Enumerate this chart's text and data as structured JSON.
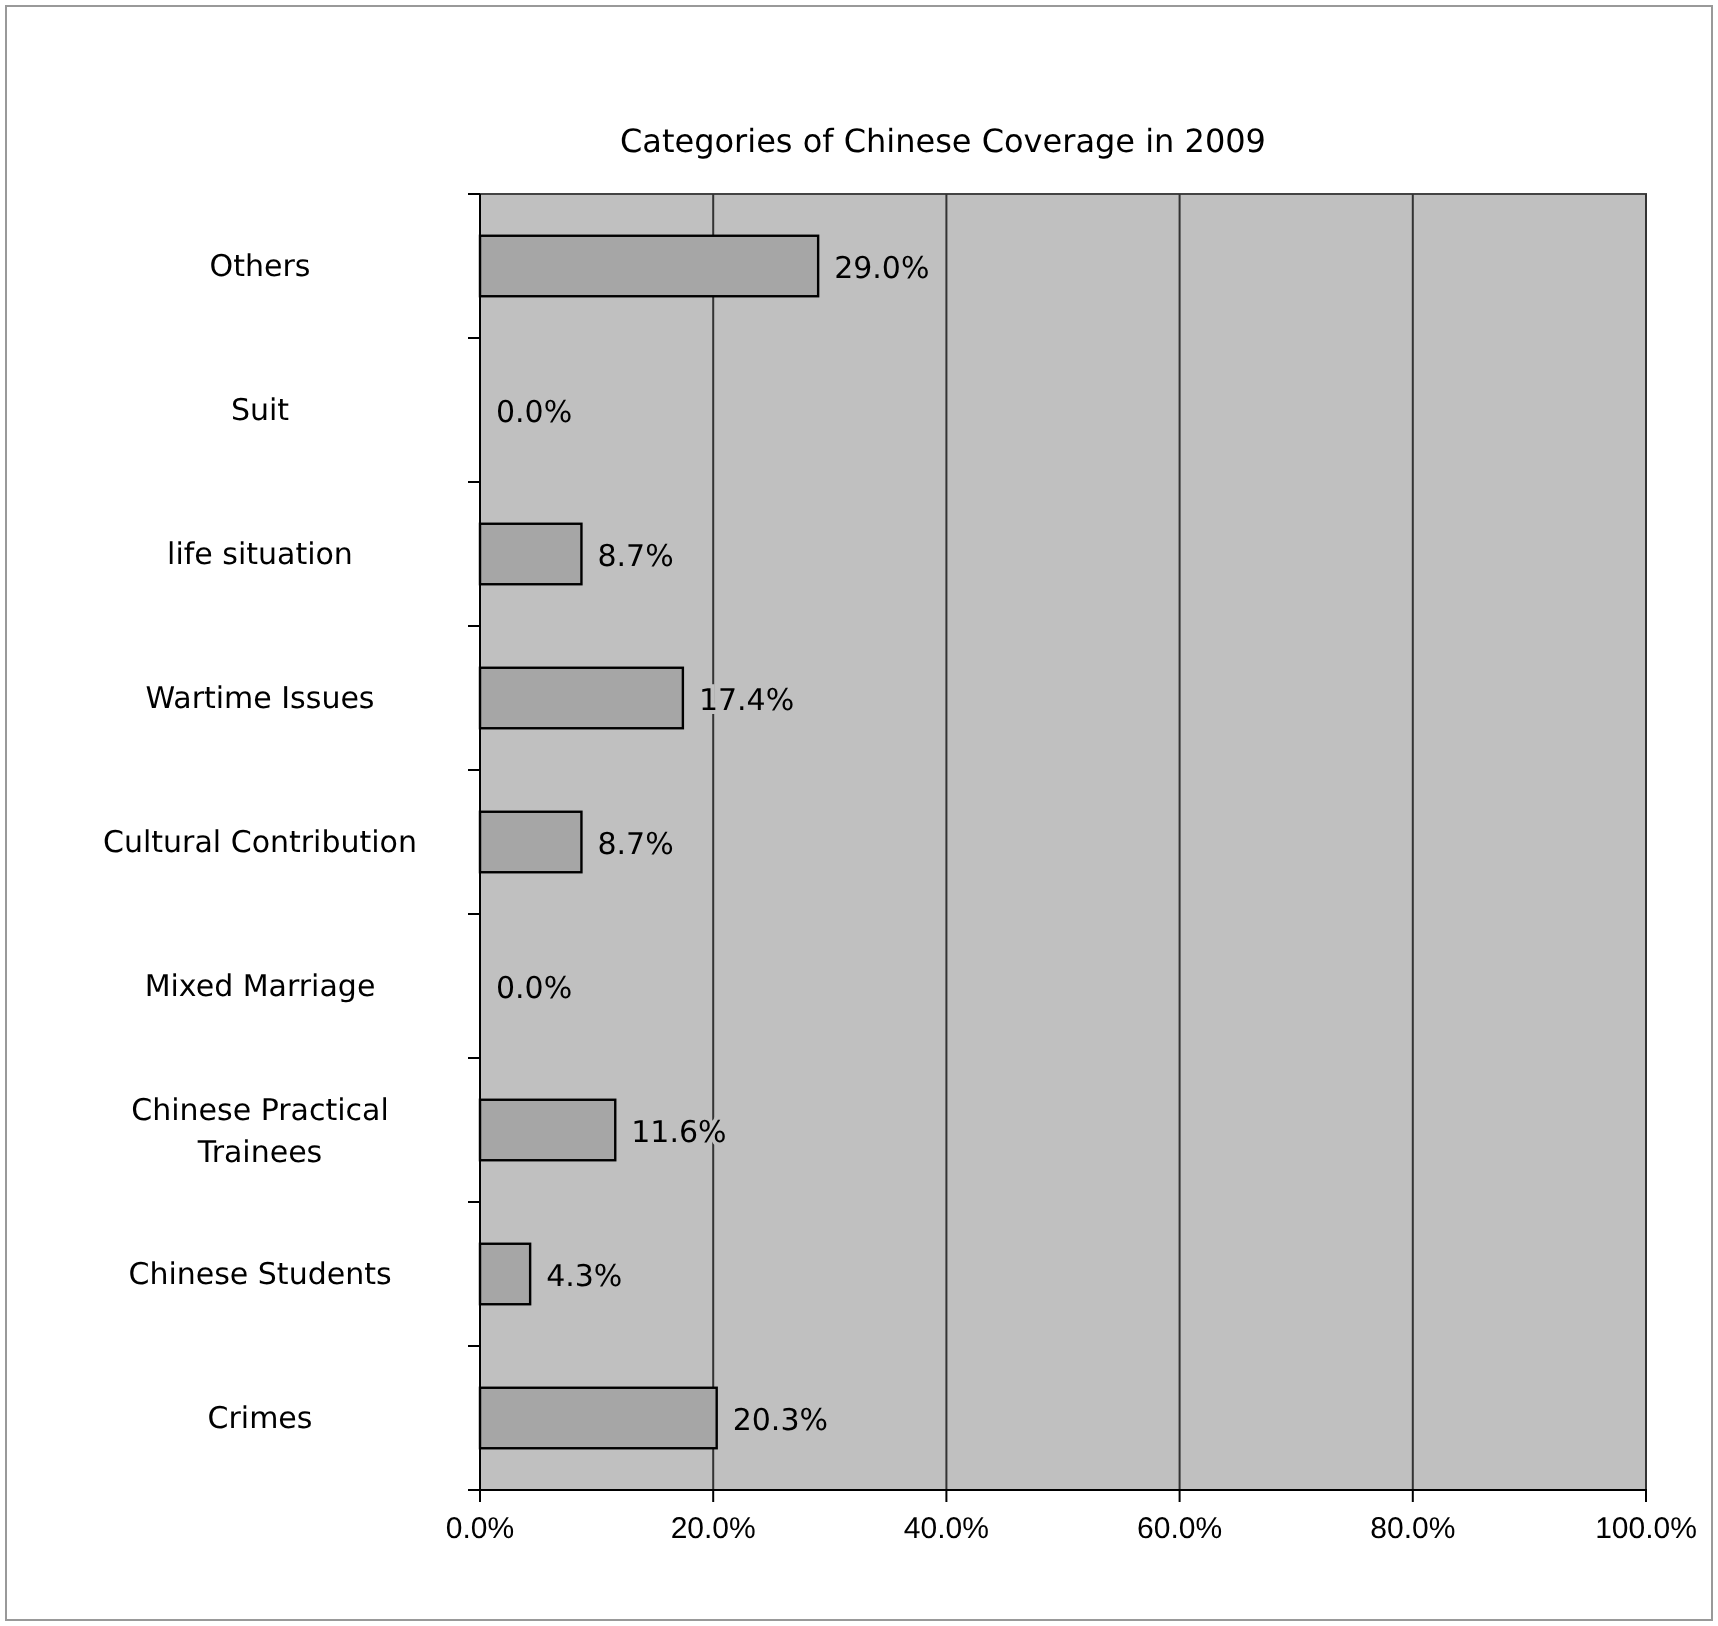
{
  "chart_data": {
    "type": "bar",
    "orientation": "horizontal",
    "title": "Categories of Chinese Coverage in 2009",
    "categories": [
      "Others",
      "Suit",
      "life situation",
      "Wartime Issues",
      "Cultural Contribution",
      "Mixed Marriage",
      "Chinese Practical Trainees",
      "Chinese Students",
      "Crimes"
    ],
    "values": [
      29.0,
      0.0,
      8.7,
      17.4,
      8.7,
      0.0,
      11.6,
      4.3,
      20.3
    ],
    "value_labels": [
      "29.0%",
      "0.0%",
      "8.7%",
      "17.4%",
      "8.7%",
      "0.0%",
      "11.6%",
      "4.3%",
      "20.3%"
    ],
    "color": "#a6a6a6",
    "xlim": [
      0,
      100
    ],
    "xticks": [
      {
        "value": 0,
        "label": "0.0%"
      },
      {
        "value": 20,
        "label": "20.0%"
      },
      {
        "value": 40,
        "label": "40.0%"
      },
      {
        "value": 60,
        "label": "60.0%"
      },
      {
        "value": 80,
        "label": "80.0%"
      },
      {
        "value": 100,
        "label": "100.0%"
      }
    ],
    "grid": "x"
  }
}
